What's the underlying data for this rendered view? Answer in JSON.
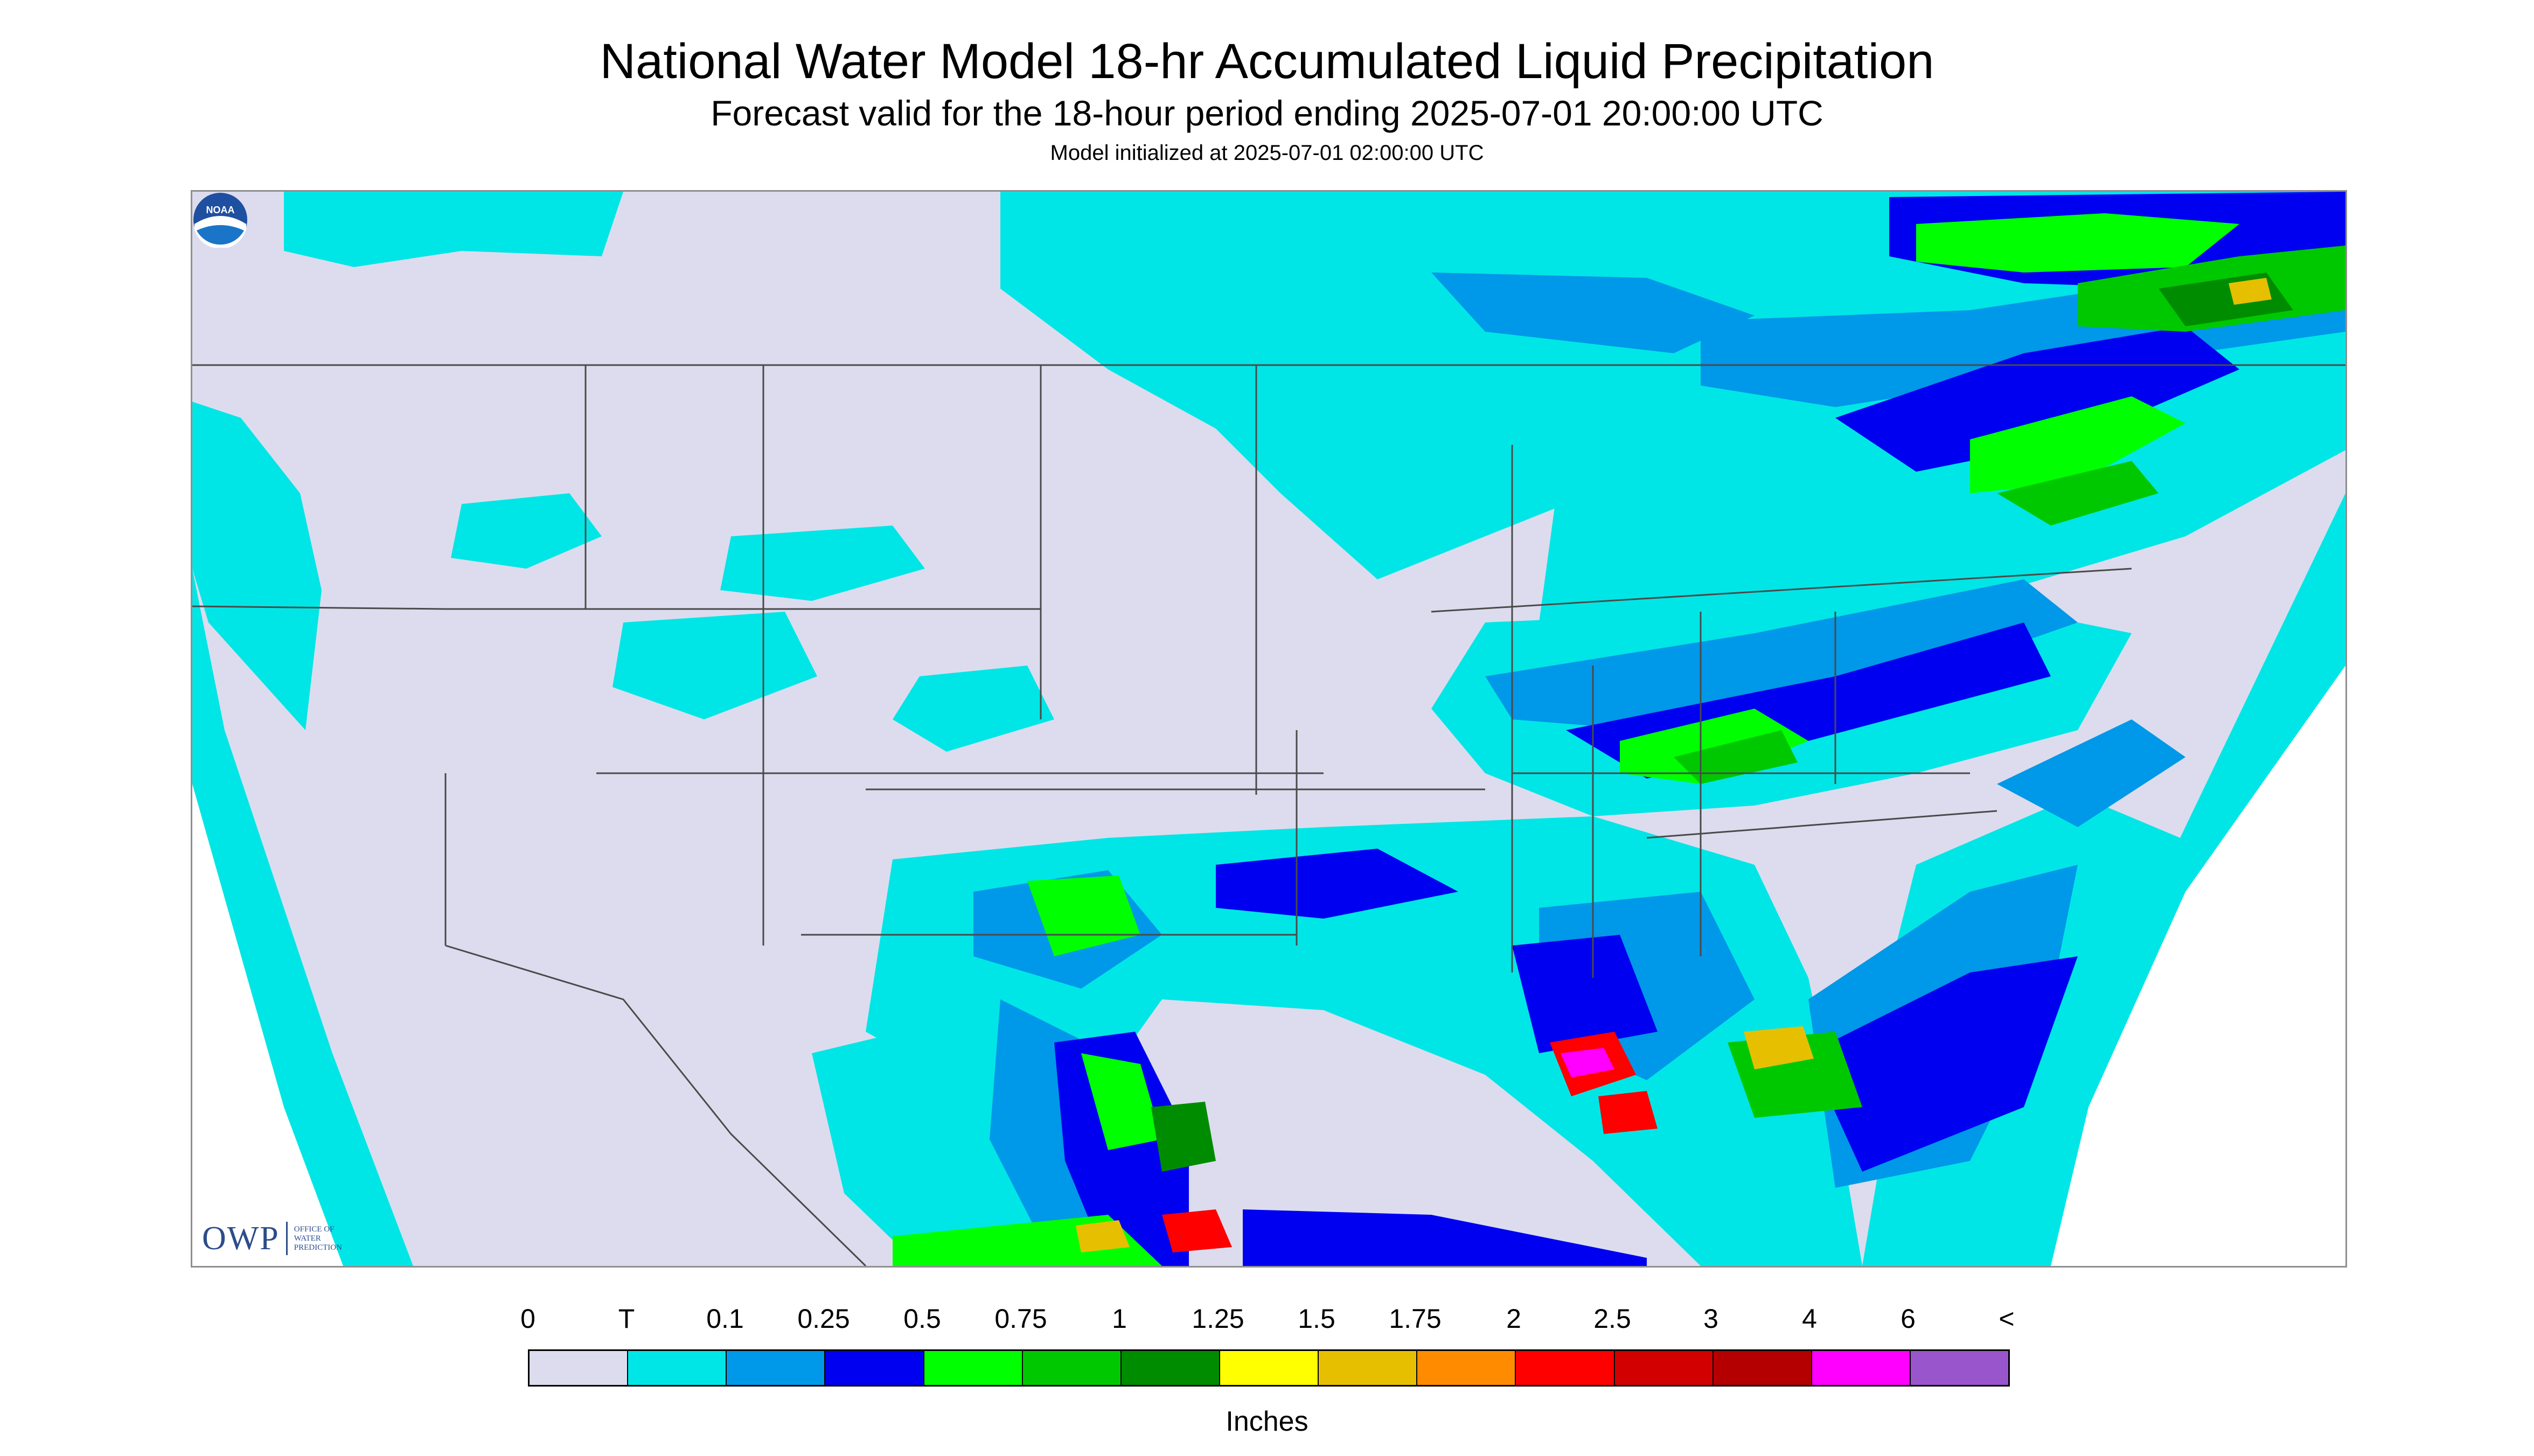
{
  "header": {
    "title": "National Water Model 18-hr Accumulated Liquid Precipitation",
    "subtitle": "Forecast valid for the 18-hour period ending 2025-07-01 20:00:00 UTC",
    "init_line": "Model initialized at 2025-07-01 02:00:00 UTC"
  },
  "logos": {
    "owp_text": "OWP",
    "owp_small": [
      "OFFICE OF",
      "WATER",
      "PREDICTION"
    ],
    "noaa_text": "NOAA"
  },
  "colors": {
    "no_data": "#ffffff",
    "land_zero": "#dcdcee",
    "trace": "#00e6e6",
    "p0_1": "#0098e8",
    "p0_25": "#0000f0",
    "p0_5": "#00ff00",
    "p0_75": "#00c800",
    "p1": "#008c00",
    "p1_25": "#ffff00",
    "p1_5": "#e6c000",
    "p1_75": "#ff8c00",
    "p2": "#ff0000",
    "p2_5": "#d20000",
    "p3": "#b40000",
    "p4": "#ff00ff",
    "p6": "#9955cc",
    "boundary": "#4a4a4a"
  },
  "legend": {
    "labels": [
      "0",
      "T",
      "0.1",
      "0.25",
      "0.5",
      "0.75",
      "1",
      "1.25",
      "1.5",
      "1.75",
      "2",
      "2.5",
      "3",
      "4",
      "6",
      "<"
    ],
    "swatches": [
      "#dcdcee",
      "#00e6e6",
      "#0098e8",
      "#0000f0",
      "#00ff00",
      "#00c800",
      "#008c00",
      "#ffff00",
      "#e6c000",
      "#ff8c00",
      "#ff0000",
      "#d20000",
      "#b40000",
      "#ff00ff",
      "#9955cc"
    ],
    "units": "Inches"
  }
}
